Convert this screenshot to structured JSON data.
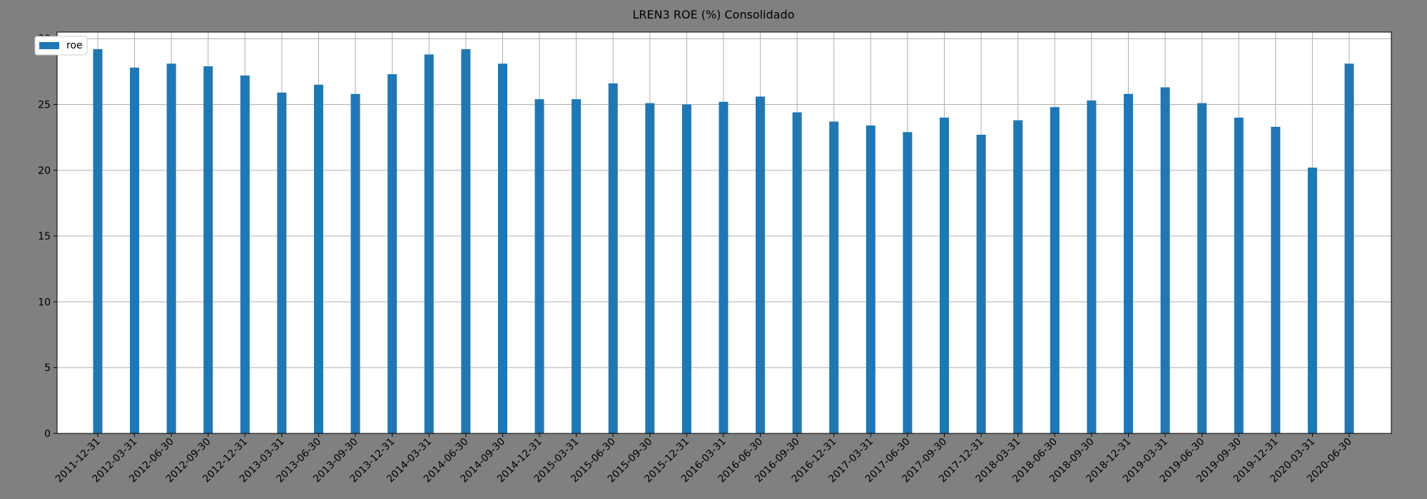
{
  "chart_data": {
    "type": "bar",
    "title": "LREN3 ROE (%) Consolidado",
    "xlabel": "",
    "ylabel": "",
    "categories": [
      "2011-12-31",
      "2012-03-31",
      "2012-06-30",
      "2012-09-30",
      "2012-12-31",
      "2013-03-31",
      "2013-06-30",
      "2013-09-30",
      "2013-12-31",
      "2014-03-31",
      "2014-06-30",
      "2014-09-30",
      "2014-12-31",
      "2015-03-31",
      "2015-06-30",
      "2015-09-30",
      "2015-12-31",
      "2016-03-31",
      "2016-06-30",
      "2016-09-30",
      "2016-12-31",
      "2017-03-31",
      "2017-06-30",
      "2017-09-30",
      "2017-12-31",
      "2018-03-31",
      "2018-06-30",
      "2018-09-30",
      "2018-12-31",
      "2019-03-31",
      "2019-06-30",
      "2019-09-30",
      "2019-12-31",
      "2020-03-31",
      "2020-06-30"
    ],
    "series": [
      {
        "name": "roe",
        "color": "#1f77b4",
        "values": [
          29.2,
          27.8,
          28.1,
          27.9,
          27.2,
          25.9,
          26.5,
          25.8,
          27.3,
          28.8,
          29.2,
          28.1,
          25.4,
          25.4,
          26.6,
          25.1,
          25.0,
          25.2,
          25.6,
          24.4,
          23.7,
          23.4,
          22.9,
          24.0,
          22.7,
          23.8,
          24.8,
          25.3,
          25.8,
          26.3,
          25.1,
          24.0,
          23.3,
          20.2,
          28.1
        ]
      }
    ],
    "ylim": [
      0,
      30.5
    ],
    "yticks": [
      0,
      5,
      10,
      15,
      20,
      25,
      30
    ],
    "grid": true,
    "legend": "top-left"
  }
}
